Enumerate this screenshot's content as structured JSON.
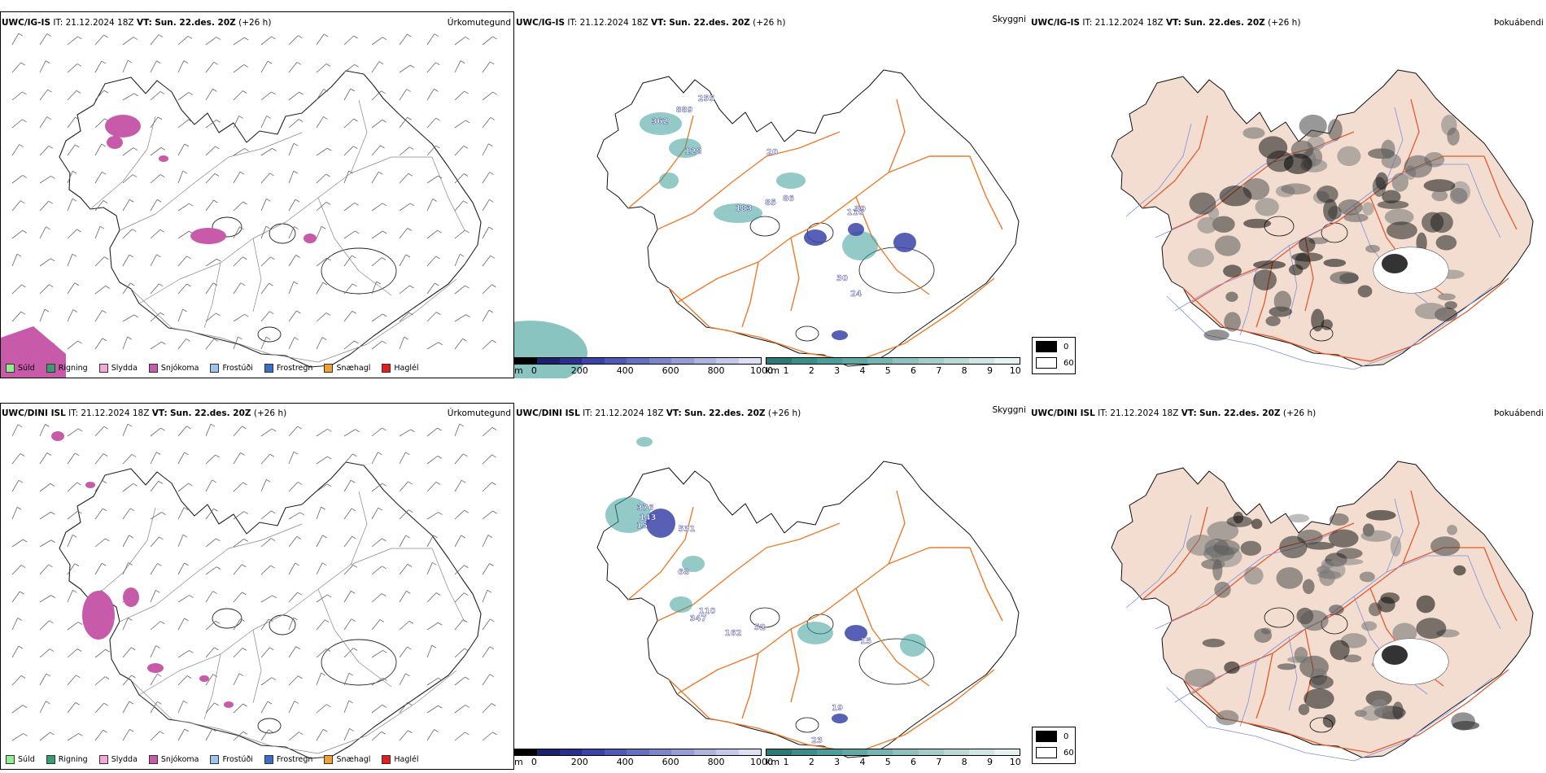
{
  "colors": {
    "snow": "#c85aaa",
    "road": "#ef7a2a",
    "teal": "#3a9d98",
    "blue": "#3a44a8",
    "land_fog": "#f2ddd0",
    "river": "#7f8fe0"
  },
  "rows": [
    {
      "model": "UWC/IG-IS",
      "it_label": "IT:",
      "it_value": "21.12.2024 18Z",
      "vt_label": "VT:",
      "vt_value": "Sun. 22.des. 20Z",
      "lead": "(+26 h)",
      "panels": {
        "precip": {
          "type_label": "Úrkomutegund"
        },
        "cloud": {
          "type_label": "Skyggni",
          "labels": [
            "255",
            "889",
            "362",
            "128",
            "20",
            "86",
            "183",
            "85",
            "110",
            "39",
            "30",
            "24"
          ]
        },
        "fog": {
          "type_label": "Þokuábendi"
        }
      }
    },
    {
      "model": "UWC/DINI ISL",
      "it_label": "IT:",
      "it_value": "21.12.2024 18Z",
      "vt_label": "VT:",
      "vt_value": "Sun. 22.des. 20Z",
      "lead": "(+26 h)",
      "panels": {
        "precip": {
          "type_label": "Úrkomutegund"
        },
        "cloud": {
          "type_label": "Skyggni",
          "labels": [
            "376",
            "143",
            "15",
            "531",
            "68",
            "110",
            "347",
            "162",
            "52",
            "15",
            "19",
            "23"
          ]
        },
        "fog": {
          "type_label": "Þokuábendi"
        }
      }
    }
  ],
  "precip_legend": [
    {
      "label": "Súld",
      "color": "#90ee90"
    },
    {
      "label": "Rigning",
      "color": "#3a9d70"
    },
    {
      "label": "Slydda",
      "color": "#f4a8d8"
    },
    {
      "label": "Snjókoma",
      "color": "#c85aaa"
    },
    {
      "label": "Frostúði",
      "color": "#9cc4ef"
    },
    {
      "label": "Frostregn",
      "color": "#3a6fc8"
    },
    {
      "label": "Snæhagl",
      "color": "#f0a030"
    },
    {
      "label": "Haglél",
      "color": "#e02020"
    }
  ],
  "cloudbase_bar": {
    "unit": "m",
    "ticks": [
      "0",
      "200",
      "400",
      "600",
      "800",
      "1000"
    ],
    "colors": [
      "#000000",
      "#1a1f6e",
      "#2a2f8f",
      "#3a44a8",
      "#5059b5",
      "#6670c2",
      "#7d86cc",
      "#959cd6",
      "#adb2df",
      "#c5c9e9",
      "#dcdff2"
    ]
  },
  "visibility_bar": {
    "unit": "km",
    "ticks": [
      "1",
      "2",
      "3",
      "4",
      "5",
      "6",
      "7",
      "8",
      "9",
      "10"
    ],
    "colors": [
      "#2b7a76",
      "#3a8f8a",
      "#4a9e99",
      "#5fa9a5",
      "#75b5b1",
      "#8cc1be",
      "#a3cdcb",
      "#b9d9d7",
      "#cfe6e4",
      "#e4f2f1"
    ]
  },
  "fog_legend": [
    {
      "label": "0",
      "color": "#000000"
    },
    {
      "label": "60",
      "color": "#ffffff"
    }
  ]
}
